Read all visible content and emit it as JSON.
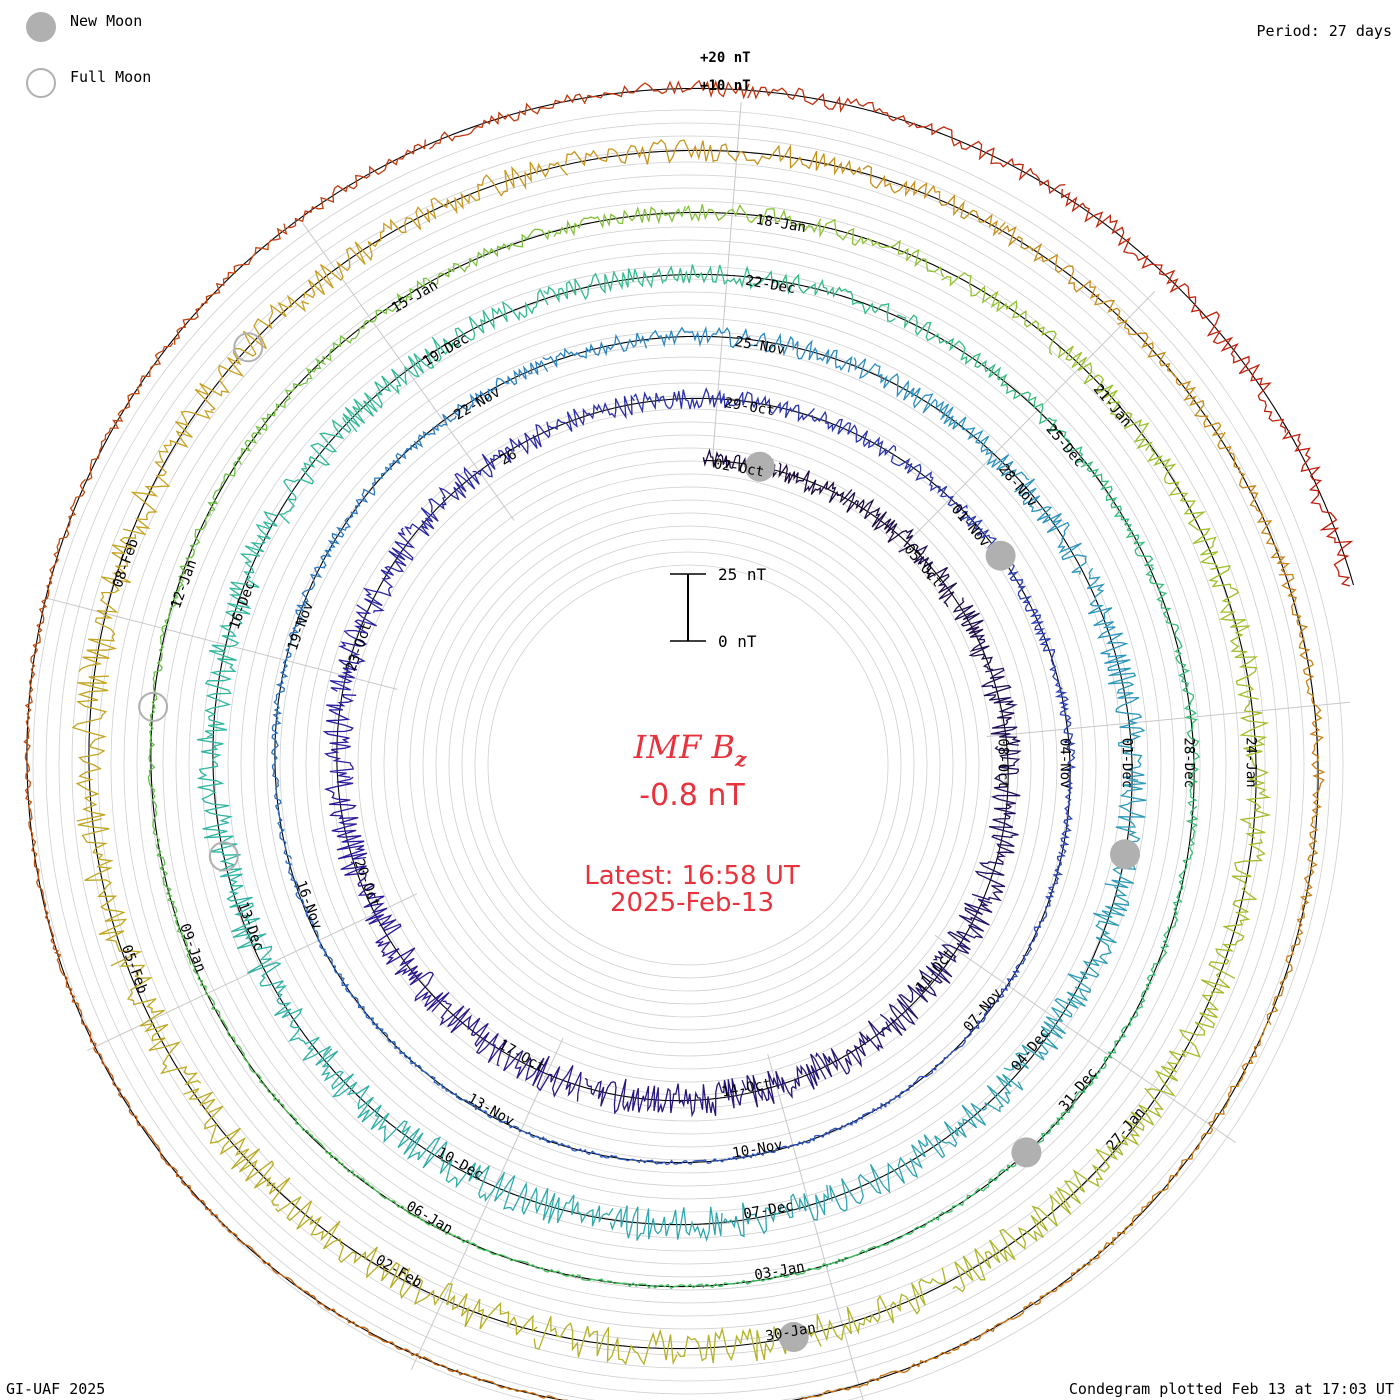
{
  "legend": {
    "new_moon_label": "New Moon",
    "full_moon_label": "Full Moon",
    "new_moon_color": "#b0b0b0"
  },
  "period_label": "Period: 27 days",
  "credit": "GI-UAF 2025",
  "plotted_label": "Condegram plotted Feb 13 at 17:03 UT",
  "center": {
    "title_main": "IMF B",
    "title_sub": "z",
    "value": "-0.8 nT",
    "latest": "Latest: 16:58 UT",
    "date": "2025-Feb-13",
    "text_color": "#e8323c"
  },
  "scale_bar": {
    "top_label": "25 nT",
    "bottom_label": "0 nT"
  },
  "chart_data": {
    "type": "line",
    "layout": "spiral condegram",
    "title": "IMF Bz",
    "period_days": 27,
    "scale_labels": [
      "+20 nT",
      "+10 nT"
    ],
    "series": [
      {
        "name": "",
        "color": "#1c0a3a",
        "start": "05-Oct",
        "end": "01-Nov"
      },
      {
        "name": "",
        "color": "#2a1a9c",
        "start": "01-Nov",
        "end": "28-Nov"
      },
      {
        "name": "",
        "color": "#2c6fb8",
        "start": "28-Nov",
        "end": "25-Dec"
      },
      {
        "name": "",
        "color": "#2fb89e",
        "start": "25-Dec",
        "end": "21-Jan"
      },
      {
        "name": "",
        "color": "#9cc12c",
        "start": "21-Jan",
        "end": "13-Feb"
      }
    ],
    "rings": [
      {
        "color": "#1c0a3a",
        "labels": [
          "02-Oct",
          "05-Oct",
          "08-Oct",
          "11-Oct",
          "14-Oct",
          "17-Oct",
          "20-Oct",
          "23-Oct",
          "26"
        ]
      },
      {
        "color": "#2a1a9c",
        "labels": [
          "29-Oct",
          "01-Nov",
          "04-Nov",
          "07-Nov",
          "10-Nov",
          "13-Nov",
          "16-Nov",
          "19-Nov",
          "22-Nov"
        ]
      },
      {
        "color": "#28a0b4",
        "labels": [
          "25-Nov",
          "28-Nov",
          "01-Dec",
          "04-Dec",
          "07-Dec",
          "10-Dec",
          "13-Dec",
          "16-Dec",
          "19-Dec"
        ]
      },
      {
        "color": "#5cc030",
        "labels": [
          "22-Dec",
          "25-Dec",
          "28-Dec",
          "31-Dec",
          "03-Jan",
          "06-Jan",
          "09-Jan",
          "12-Jan",
          "15-Jan"
        ]
      },
      {
        "color": "#c8a020",
        "labels": [
          "18-Jan",
          "21-Jan",
          "24-Jan",
          "27-Jan",
          "30-Jan",
          "02-Feb",
          "05-Feb",
          "08-Feb"
        ]
      },
      {
        "color": "#c0180c",
        "labels": []
      }
    ],
    "moons": [
      {
        "phase": "new",
        "ring": 0,
        "day": 0.8
      },
      {
        "phase": "new",
        "ring": 1,
        "day": 4.0
      },
      {
        "phase": "new",
        "ring": 2,
        "day": 7.4
      },
      {
        "phase": "new",
        "ring": 3,
        "day": 10.2
      },
      {
        "phase": "new",
        "ring": 4,
        "day": 12.5
      },
      {
        "phase": "full",
        "ring": 2,
        "day": 19.2
      },
      {
        "phase": "full",
        "ring": 3,
        "day": 20.5
      },
      {
        "phase": "full",
        "ring": 4,
        "day": 23.3
      }
    ]
  }
}
